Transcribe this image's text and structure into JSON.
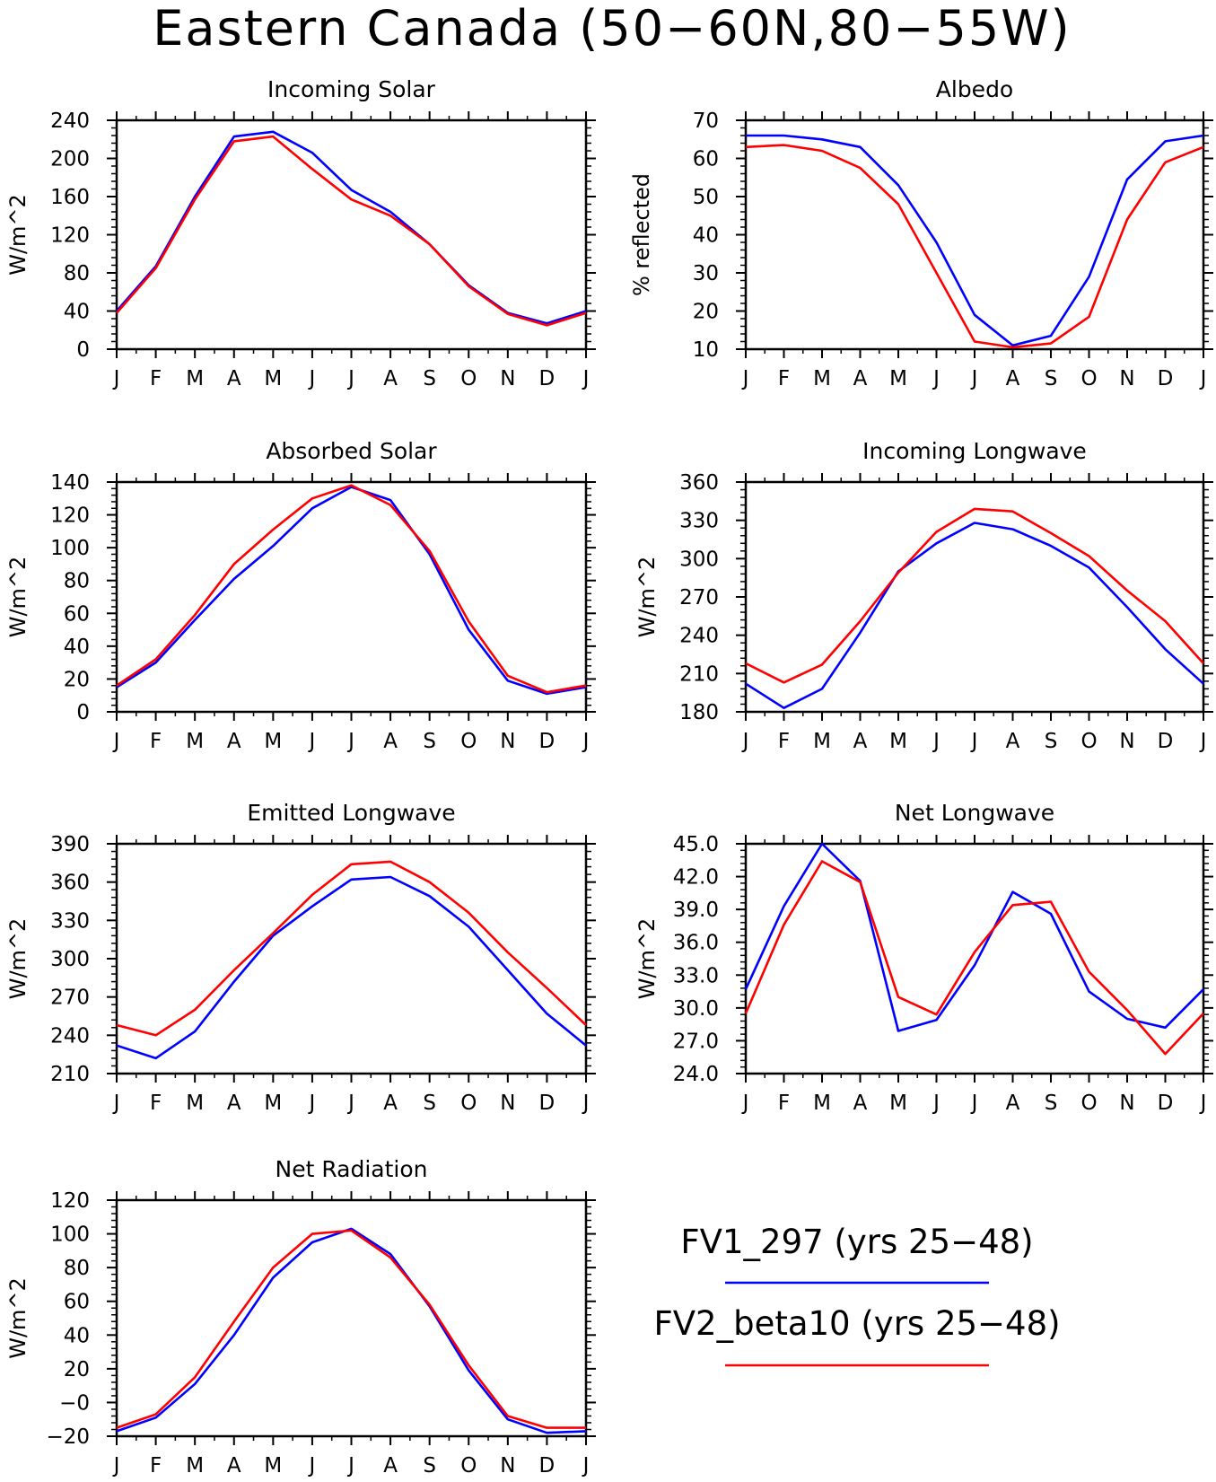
{
  "page": {
    "title": "Eastern Canada (50−60N,80−55W)"
  },
  "legend": {
    "items": [
      {
        "label": "FV1_297 (yrs 25−48)",
        "color": "#0000ff"
      },
      {
        "label": "FV2_beta10 (yrs 25−48)",
        "color": "#ff0000"
      }
    ]
  },
  "chart_data": [
    {
      "type": "line",
      "title": "Incoming Solar",
      "ylabel": "W/m^2",
      "xlabel": "",
      "categories": [
        "J",
        "F",
        "M",
        "A",
        "M",
        "J",
        "J",
        "A",
        "S",
        "O",
        "N",
        "D",
        "J"
      ],
      "ylim": [
        0,
        240
      ],
      "yticks": [
        0,
        40,
        80,
        120,
        160,
        200,
        240
      ],
      "ytick_labels": [
        "0",
        "40",
        "80",
        "120",
        "160",
        "200",
        "240"
      ],
      "series": [
        {
          "name": "FV1_297 (yrs 25−48)",
          "color": "#0000ff",
          "values": [
            40,
            87,
            160,
            223,
            228,
            206,
            167,
            144,
            110,
            67,
            38,
            27,
            40
          ]
        },
        {
          "name": "FV2_beta10 (yrs 25−48)",
          "color": "#ff0000",
          "values": [
            38,
            85,
            157,
            218,
            223,
            189,
            157,
            140,
            110,
            66,
            37,
            25,
            38
          ]
        }
      ]
    },
    {
      "type": "line",
      "title": "Albedo",
      "ylabel": "% reflected",
      "xlabel": "",
      "categories": [
        "J",
        "F",
        "M",
        "A",
        "M",
        "J",
        "J",
        "A",
        "S",
        "O",
        "N",
        "D",
        "J"
      ],
      "ylim": [
        10,
        70
      ],
      "yticks": [
        10,
        20,
        30,
        40,
        50,
        60,
        70
      ],
      "ytick_labels": [
        "10",
        "20",
        "30",
        "40",
        "50",
        "60",
        "70"
      ],
      "series": [
        {
          "name": "FV1_297 (yrs 25−48)",
          "color": "#0000ff",
          "values": [
            66,
            66,
            65,
            63,
            53,
            38,
            19,
            11,
            13.5,
            29,
            54.5,
            64.5,
            66
          ]
        },
        {
          "name": "FV2_beta10 (yrs 25−48)",
          "color": "#ff0000",
          "values": [
            63,
            63.5,
            62,
            57.5,
            48,
            30,
            12,
            10.5,
            11.5,
            18.5,
            44,
            59,
            63
          ]
        }
      ]
    },
    {
      "type": "line",
      "title": "Absorbed Solar",
      "ylabel": "W/m^2",
      "xlabel": "",
      "categories": [
        "J",
        "F",
        "M",
        "A",
        "M",
        "J",
        "J",
        "A",
        "S",
        "O",
        "N",
        "D",
        "J"
      ],
      "ylim": [
        0,
        140
      ],
      "yticks": [
        0,
        20,
        40,
        60,
        80,
        100,
        120,
        140
      ],
      "ytick_labels": [
        "0",
        "20",
        "40",
        "60",
        "80",
        "100",
        "120",
        "140"
      ],
      "series": [
        {
          "name": "FV1_297 (yrs 25−48)",
          "color": "#0000ff",
          "values": [
            15,
            30,
            56,
            81,
            101,
            124,
            137,
            129,
            96,
            50,
            19,
            11,
            15
          ]
        },
        {
          "name": "FV2_beta10 (yrs 25−48)",
          "color": "#ff0000",
          "values": [
            16,
            32,
            59,
            90,
            111,
            130,
            138,
            126,
            98,
            55,
            22,
            12,
            16
          ]
        }
      ]
    },
    {
      "type": "line",
      "title": "Incoming Longwave",
      "ylabel": "W/m^2",
      "xlabel": "",
      "categories": [
        "J",
        "F",
        "M",
        "A",
        "M",
        "J",
        "J",
        "A",
        "S",
        "O",
        "N",
        "D",
        "J"
      ],
      "ylim": [
        180,
        360
      ],
      "yticks": [
        180,
        210,
        240,
        270,
        300,
        330,
        360
      ],
      "ytick_labels": [
        "180",
        "210",
        "240",
        "270",
        "300",
        "330",
        "360"
      ],
      "series": [
        {
          "name": "FV1_297 (yrs 25−48)",
          "color": "#0000ff",
          "values": [
            202,
            183,
            198,
            242,
            290,
            312,
            328,
            323,
            310,
            293,
            262,
            229,
            202
          ]
        },
        {
          "name": "FV2_beta10 (yrs 25−48)",
          "color": "#ff0000",
          "values": [
            218,
            203,
            217,
            251,
            289,
            321,
            339,
            337,
            320,
            302,
            275,
            251,
            218
          ]
        }
      ]
    },
    {
      "type": "line",
      "title": "Emitted Longwave",
      "ylabel": "W/m^2",
      "xlabel": "",
      "categories": [
        "J",
        "F",
        "M",
        "A",
        "M",
        "J",
        "J",
        "A",
        "S",
        "O",
        "N",
        "D",
        "J"
      ],
      "ylim": [
        210,
        390
      ],
      "yticks": [
        210,
        240,
        270,
        300,
        330,
        360,
        390
      ],
      "ytick_labels": [
        "210",
        "240",
        "270",
        "300",
        "330",
        "360",
        "390"
      ],
      "series": [
        {
          "name": "FV1_297 (yrs 25−48)",
          "color": "#0000ff",
          "values": [
            232,
            222,
            243,
            282,
            318,
            341,
            362,
            364,
            349,
            325,
            291,
            257,
            232
          ]
        },
        {
          "name": "FV2_beta10 (yrs 25−48)",
          "color": "#ff0000",
          "values": [
            248,
            240,
            260,
            291,
            320,
            350,
            374,
            376,
            360,
            336,
            305,
            277,
            248
          ]
        }
      ]
    },
    {
      "type": "line",
      "title": "Net Longwave",
      "ylabel": "W/m^2",
      "xlabel": "",
      "categories": [
        "J",
        "F",
        "M",
        "A",
        "M",
        "J",
        "J",
        "A",
        "S",
        "O",
        "N",
        "D",
        "J"
      ],
      "ylim": [
        24,
        45
      ],
      "yticks": [
        24,
        27,
        30,
        33,
        36,
        39,
        42,
        45
      ],
      "ytick_labels": [
        "24.0",
        "27.0",
        "30.0",
        "33.0",
        "36.0",
        "39.0",
        "42.0",
        "45.0"
      ],
      "series": [
        {
          "name": "FV1_297 (yrs 25−48)",
          "color": "#0000ff",
          "values": [
            31.7,
            39.3,
            45.0,
            41.6,
            27.9,
            28.9,
            33.9,
            40.6,
            38.6,
            31.5,
            29.0,
            28.2,
            31.7
          ]
        },
        {
          "name": "FV2_beta10 (yrs 25−48)",
          "color": "#ff0000",
          "values": [
            29.5,
            37.6,
            43.4,
            41.5,
            31.0,
            29.4,
            35.1,
            39.4,
            39.7,
            33.3,
            29.8,
            25.8,
            29.5
          ]
        }
      ]
    },
    {
      "type": "line",
      "title": "Net Radiation",
      "ylabel": "W/m^2",
      "xlabel": "",
      "categories": [
        "J",
        "F",
        "M",
        "A",
        "M",
        "J",
        "J",
        "A",
        "S",
        "O",
        "N",
        "D",
        "J"
      ],
      "ylim": [
        -20,
        120
      ],
      "yticks": [
        -20,
        0,
        20,
        40,
        60,
        80,
        100,
        120
      ],
      "ytick_labels": [
        "−20",
        "−0",
        "20",
        "40",
        "60",
        "80",
        "100",
        "120"
      ],
      "series": [
        {
          "name": "FV1_297 (yrs 25−48)",
          "color": "#0000ff",
          "values": [
            -17,
            -9,
            11,
            40,
            74,
            95,
            103,
            88,
            57,
            19,
            -10,
            -18,
            -17
          ]
        },
        {
          "name": "FV2_beta10 (yrs 25−48)",
          "color": "#ff0000",
          "values": [
            -15,
            -7,
            15,
            48,
            80,
            100,
            102,
            86,
            58,
            22,
            -8,
            -15,
            -15
          ]
        }
      ]
    }
  ]
}
